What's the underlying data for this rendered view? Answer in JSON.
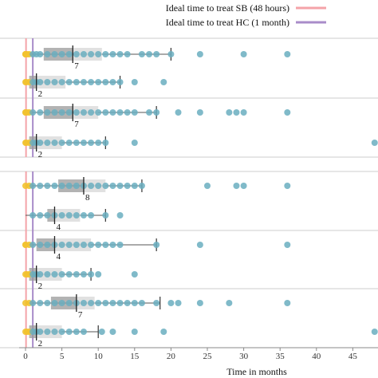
{
  "chart_data": {
    "type": "box",
    "xlabel": "Time in months",
    "xlim": [
      -1,
      48
    ],
    "xticks": [
      0,
      5,
      10,
      15,
      20,
      25,
      30,
      35,
      40,
      45
    ],
    "grid": false,
    "legend_placement": "top-right",
    "reference_lines": [
      {
        "label": "Ideal time to treat SB (48 hours)",
        "x": 0.07,
        "color": "#f4a3a8"
      },
      {
        "label": "Ideal time to treat HC (1 month)",
        "x": 1,
        "color": "#a98cc9"
      }
    ],
    "groups": [
      {
        "rows": [
          {
            "q1": 2.5,
            "median": 6.5,
            "q3": 10.5,
            "whisker_high": 20,
            "median_label": "7",
            "points": [
              0,
              0,
              0,
              0.2,
              0.5,
              1,
              1.5,
              2,
              3,
              4,
              5,
              6,
              7,
              8,
              9,
              10,
              11,
              12,
              13,
              14,
              16,
              17,
              18,
              20,
              24,
              30,
              36
            ]
          },
          {
            "q1": 0.5,
            "median": 1.5,
            "q3": 5.5,
            "whisker_high": 13,
            "median_label": "2",
            "points": [
              0,
              0.1,
              0.5,
              1,
              1.5,
              2,
              3,
              4,
              5,
              6,
              7,
              8,
              9,
              10,
              11,
              12,
              13,
              15,
              19
            ]
          }
        ]
      },
      {
        "rows": [
          {
            "q1": 2.5,
            "median": 6.5,
            "q3": 10,
            "whisker_high": 18,
            "median_label": "7",
            "points": [
              0,
              0,
              0.2,
              0.5,
              1,
              2,
              3,
              4,
              5,
              6,
              7,
              8,
              9,
              10,
              11,
              12,
              13,
              14,
              15,
              17,
              18,
              21,
              24,
              28,
              29,
              30,
              36
            ]
          },
          {
            "q1": 0.5,
            "median": 1.5,
            "q3": 5,
            "whisker_high": 11,
            "median_label": "2",
            "points": [
              0,
              0.1,
              0.5,
              1,
              1.5,
              2,
              3,
              4,
              5,
              6,
              7,
              8,
              9,
              10,
              11,
              15,
              48
            ]
          }
        ]
      },
      {
        "rows": [
          {
            "q1": 4.5,
            "median": 8,
            "q3": 11,
            "whisker_high": 16,
            "median_label": "8",
            "points": [
              0,
              0.5,
              1,
              2,
              3,
              4,
              5,
              6,
              7,
              8,
              9,
              10,
              11,
              12,
              13,
              14,
              15,
              16,
              25,
              29,
              30,
              36
            ]
          },
          {
            "q1": 3,
            "median": 4,
            "q3": 7.5,
            "whisker_high": 11,
            "median_label": "4",
            "points": [
              1,
              2,
              3,
              4,
              5,
              6,
              7,
              8,
              9,
              11,
              13
            ]
          },
          {
            "q1": 1.5,
            "median": 4,
            "q3": 9,
            "whisker_high": 18,
            "median_label": "4",
            "points": [
              0,
              0,
              0.5,
              1,
              2,
              3,
              4,
              5,
              6,
              7,
              8,
              9,
              10,
              11,
              12,
              13,
              18,
              24,
              36
            ]
          },
          {
            "q1": 0.5,
            "median": 1.5,
            "q3": 5,
            "whisker_high": 9,
            "median_label": "2",
            "points": [
              0,
              0.2,
              0.5,
              1,
              1.5,
              2,
              3,
              4,
              5,
              6,
              7,
              8,
              9,
              10,
              15
            ]
          },
          {
            "q1": 3.5,
            "median": 7,
            "q3": 9.5,
            "whisker_high": 18.5,
            "median_label": "7",
            "points": [
              0,
              0.5,
              1,
              2,
              3,
              4,
              5,
              6,
              7,
              8,
              9,
              10,
              11,
              12,
              13,
              14,
              15,
              16,
              18,
              20,
              21,
              24,
              28,
              36
            ]
          },
          {
            "q1": 0.5,
            "median": 1.5,
            "q3": 5,
            "whisker_high": 10,
            "median_label": "2",
            "points": [
              0,
              0.2,
              0.5,
              1,
              1.5,
              2,
              3,
              4,
              5,
              6,
              7,
              8,
              10.5,
              12,
              15,
              19,
              48
            ]
          }
        ]
      }
    ],
    "colors": {
      "point": "#6aaec0",
      "point_near_zero": "#f2c230",
      "box_light": "#d9d9d9",
      "box_dark": "#9a9a9a",
      "whisker": "#555555",
      "separator": "#cccccc",
      "axis": "#888888"
    }
  }
}
